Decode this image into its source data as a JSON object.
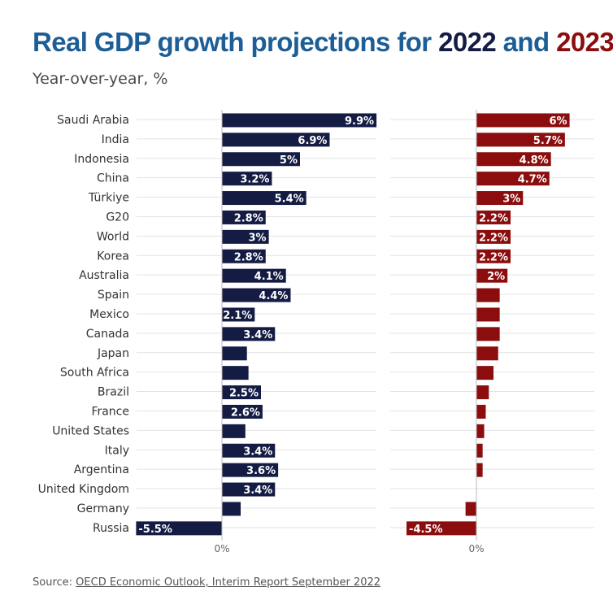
{
  "title": {
    "prefix": "Real GDP growth projections for ",
    "year1": "2022",
    "mid": " and ",
    "year2": "2023"
  },
  "subtitle": "Year-over-year, %",
  "source": {
    "label": "Source: ",
    "link_text": "OECD Economic Outlook, Interim Report September 2022"
  },
  "colors": {
    "series_2022": "#141c44",
    "series_2023": "#8b0d0d",
    "title_blue": "#1d5e96",
    "gridline": "#e3e3e3"
  },
  "chart_data": {
    "type": "bar",
    "orientation": "horizontal",
    "categories": [
      "Saudi Arabia",
      "India",
      "Indonesia",
      "China",
      "Türkiye",
      "G20",
      "World",
      "Korea",
      "Australia",
      "Spain",
      "Mexico",
      "Canada",
      "Japan",
      "South Africa",
      "Brazil",
      "France",
      "United States",
      "Italy",
      "Argentina",
      "United Kingdom",
      "Germany",
      "Russia"
    ],
    "series": [
      {
        "name": "2022",
        "values": [
          9.9,
          6.9,
          5,
          3.2,
          5.4,
          2.8,
          3,
          2.8,
          4.1,
          4.4,
          2.1,
          3.4,
          1.6,
          1.7,
          2.5,
          2.6,
          1.5,
          3.4,
          3.6,
          3.4,
          1.2,
          -5.5
        ],
        "labels": [
          "9.9%",
          "6.9%",
          "5%",
          "3.2%",
          "5.4%",
          "2.8%",
          "3%",
          "2.8%",
          "4.1%",
          "4.4%",
          "2.1%",
          "3.4%",
          "",
          "",
          "2.5%",
          "2.6%",
          "",
          "3.4%",
          "3.6%",
          "3.4%",
          "",
          "-5.5%"
        ]
      },
      {
        "name": "2023",
        "values": [
          6,
          5.7,
          4.8,
          4.7,
          3,
          2.2,
          2.2,
          2.2,
          2,
          1.5,
          1.5,
          1.5,
          1.4,
          1.1,
          0.8,
          0.6,
          0.5,
          0.4,
          0.4,
          0,
          -0.7,
          -4.5
        ],
        "labels": [
          "6%",
          "5.7%",
          "4.8%",
          "4.7%",
          "3%",
          "2.2%",
          "2.2%",
          "2.2%",
          "2%",
          "",
          "",
          "",
          "",
          "",
          "",
          "",
          "",
          "",
          "",
          "",
          "",
          "-4.5%"
        ]
      }
    ],
    "xtick_label": "0%",
    "grid": true,
    "legend": "none"
  }
}
